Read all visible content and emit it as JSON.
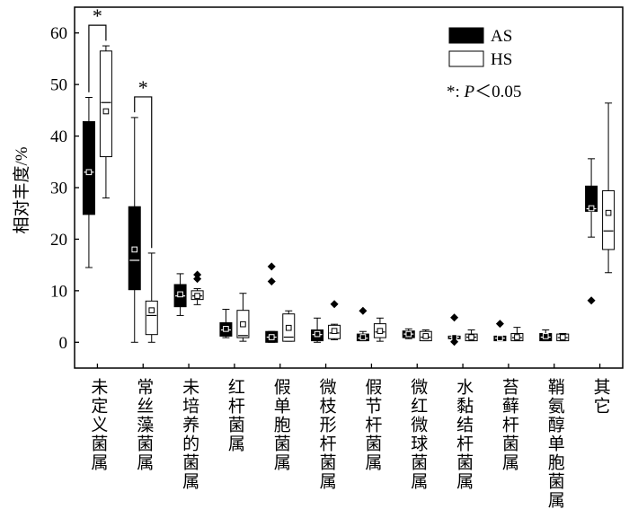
{
  "chart_data": {
    "type": "box",
    "title": "",
    "xlabel": "",
    "ylabel": "相对丰度/%",
    "ylim": [
      -5,
      65
    ],
    "yticks": [
      0,
      10,
      20,
      30,
      40,
      50,
      60
    ],
    "grid": false,
    "legend_position": "top-right",
    "categories": [
      "未定义菌属",
      "常丝藻菌属",
      "未培养的菌属",
      "红杆菌属",
      "假单胞菌属",
      "微枝形杆菌属",
      "假节杆菌属",
      "微红微球菌属",
      "水黏结杆菌属",
      "苔藓杆菌属",
      "鞘氨醇单胞菌属",
      "其它"
    ],
    "series": [
      {
        "name": "AS",
        "color": "#000000",
        "median_color": "#ffffff",
        "boxes": [
          {
            "min": 14.5,
            "q1": 24.8,
            "median": 33.0,
            "q3": 42.8,
            "max": 47.5,
            "mean": 33.0,
            "outliers": []
          },
          {
            "min": 0.0,
            "q1": 10.2,
            "median": 15.9,
            "q3": 26.3,
            "max": 43.6,
            "mean": 18.0,
            "outliers": []
          },
          {
            "min": 5.2,
            "q1": 6.9,
            "median": 9.0,
            "q3": 11.2,
            "max": 13.3,
            "mean": 9.3,
            "outliers": []
          },
          {
            "min": 0.9,
            "q1": 1.2,
            "median": 2.4,
            "q3": 3.8,
            "max": 6.4,
            "mean": 2.6,
            "outliers": []
          },
          {
            "min": 0.0,
            "q1": 0.0,
            "median": 1.0,
            "q3": 2.1,
            "max": 2.1,
            "mean": 1.0,
            "outliers": [
              11.8,
              14.7
            ]
          },
          {
            "min": 0.0,
            "q1": 0.3,
            "median": 1.5,
            "q3": 2.4,
            "max": 4.7,
            "mean": 1.6,
            "outliers": []
          },
          {
            "min": 0.3,
            "q1": 0.3,
            "median": 0.8,
            "q3": 1.6,
            "max": 2.1,
            "mean": 1.0,
            "outliers": [
              6.1
            ]
          },
          {
            "min": 0.7,
            "q1": 0.9,
            "median": 1.6,
            "q3": 2.2,
            "max": 2.6,
            "mean": 1.6,
            "outliers": []
          },
          {
            "min": 0.7,
            "q1": 0.7,
            "median": 1.0,
            "q3": 1.2,
            "max": 1.2,
            "mean": 1.0,
            "outliers": [
              4.8,
              0.1
            ]
          },
          {
            "min": 0.3,
            "q1": 0.3,
            "median": 0.8,
            "q3": 1.2,
            "max": 1.2,
            "mean": 0.8,
            "outliers": [
              3.6
            ]
          },
          {
            "min": 0.3,
            "q1": 0.3,
            "median": 1.0,
            "q3": 1.7,
            "max": 2.4,
            "mean": 1.2,
            "outliers": []
          },
          {
            "min": 20.4,
            "q1": 25.4,
            "median": 25.9,
            "q3": 30.3,
            "max": 35.6,
            "mean": 26.0,
            "outliers": [
              8.1
            ]
          }
        ]
      },
      {
        "name": "HS",
        "color": "#ffffff",
        "median_color": "#000000",
        "boxes": [
          {
            "min": 28.0,
            "q1": 36.0,
            "median": 46.5,
            "q3": 56.5,
            "max": 57.5,
            "mean": 44.8,
            "outliers": []
          },
          {
            "min": 0.0,
            "q1": 1.5,
            "median": 5.2,
            "q3": 8.0,
            "max": 17.3,
            "mean": 6.2,
            "outliers": []
          },
          {
            "min": 7.3,
            "q1": 8.3,
            "median": 9.0,
            "q3": 10.0,
            "max": 10.4,
            "mean": 9.0,
            "outliers": [
              12.3,
              13.1
            ]
          },
          {
            "min": 0.2,
            "q1": 0.9,
            "median": 1.3,
            "q3": 6.2,
            "max": 9.5,
            "mean": 3.5,
            "outliers": []
          },
          {
            "min": 0.2,
            "q1": 0.2,
            "median": 1.0,
            "q3": 5.5,
            "max": 6.1,
            "mean": 2.8,
            "outliers": []
          },
          {
            "min": 0.5,
            "q1": 0.7,
            "median": 1.8,
            "q3": 3.3,
            "max": 3.5,
            "mean": 2.2,
            "outliers": [
              7.4
            ]
          },
          {
            "min": 0.2,
            "q1": 0.9,
            "median": 2.0,
            "q3": 3.6,
            "max": 4.7,
            "mean": 2.2,
            "outliers": []
          },
          {
            "min": 0.3,
            "q1": 0.3,
            "median": 1.0,
            "q3": 2.1,
            "max": 2.4,
            "mean": 1.2,
            "outliers": []
          },
          {
            "min": 0.3,
            "q1": 0.3,
            "median": 1.0,
            "q3": 1.6,
            "max": 2.4,
            "mean": 1.0,
            "outliers": []
          },
          {
            "min": 0.3,
            "q1": 0.3,
            "median": 0.9,
            "q3": 1.7,
            "max": 2.9,
            "mean": 1.0,
            "outliers": []
          },
          {
            "min": 0.3,
            "q1": 0.3,
            "median": 0.9,
            "q3": 1.6,
            "max": 1.7,
            "mean": 1.0,
            "outliers": []
          },
          {
            "min": 13.5,
            "q1": 18.0,
            "median": 21.6,
            "q3": 29.4,
            "max": 46.4,
            "mean": 25.1,
            "outliers": []
          }
        ]
      }
    ],
    "significance": [
      {
        "category_index": 0,
        "label": "*"
      },
      {
        "category_index": 1,
        "label": "*"
      }
    ],
    "note": {
      "prefix": "*: ",
      "p": "P",
      "suffix": "＜0.05"
    }
  }
}
